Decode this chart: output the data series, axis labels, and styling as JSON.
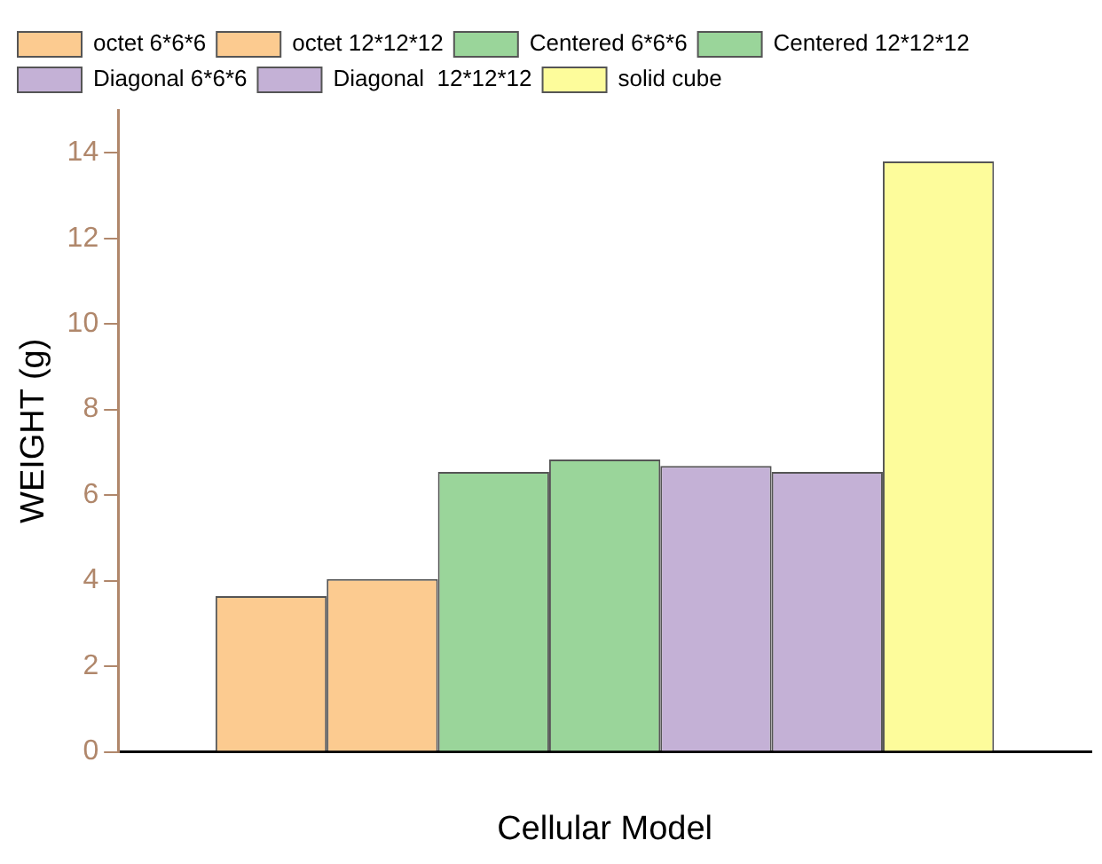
{
  "chart_data": {
    "type": "bar",
    "xlabel": "Cellular Model",
    "ylabel": "WEIGHT (g)",
    "categories": [
      null
    ],
    "series": [
      {
        "name": "octet 6*6*6",
        "color": "#fccb90",
        "values": [
          3.64
        ]
      },
      {
        "name": "octet 12*12*12",
        "color": "#fccb90",
        "values": [
          4.04
        ]
      },
      {
        "name": "Centered 6*6*6",
        "color": "#9ad59a",
        "values": [
          6.54
        ]
      },
      {
        "name": "Centered 12*12*12",
        "color": "#9ad59a",
        "values": [
          6.83
        ]
      },
      {
        "name": "Diagonal 6*6*6",
        "color": "#c4b1d6",
        "values": [
          6.68
        ]
      },
      {
        "name": "Diagonal  12*12*12",
        "color": "#c4b1d6",
        "values": [
          6.54
        ]
      },
      {
        "name": "solid cube",
        "color": "#fdfc9b",
        "values": [
          13.8
        ]
      }
    ],
    "ylim": [
      0,
      15
    ],
    "yticks": [
      0,
      2,
      4,
      6,
      8,
      10,
      12,
      14
    ],
    "grid": false,
    "legend": "top left"
  }
}
